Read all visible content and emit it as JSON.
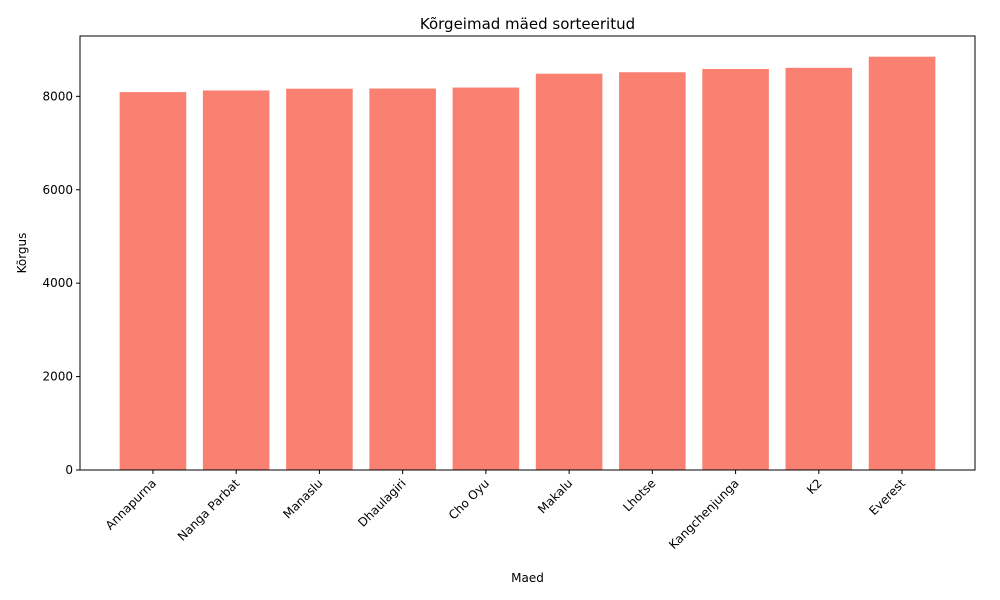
{
  "chart_data": {
    "type": "bar",
    "title": "Kõrgeimad mäed sorteeritud",
    "xlabel": "Maed",
    "ylabel": "Kõrgus",
    "categories": [
      "Annapurna",
      "Nanga Parbat",
      "Manaslu",
      "Dhaulagiri",
      "Cho Oyu",
      "Makalu",
      "Lhotse",
      "Kangchenjunga",
      "K2",
      "Everest"
    ],
    "values": [
      8091,
      8126,
      8163,
      8167,
      8188,
      8485,
      8516,
      8586,
      8611,
      8849
    ],
    "ylim": [
      0,
      9292
    ],
    "yticks": [
      0,
      2000,
      4000,
      6000,
      8000
    ],
    "bar_color": "#fa8072",
    "grid": false,
    "legend": "none"
  }
}
